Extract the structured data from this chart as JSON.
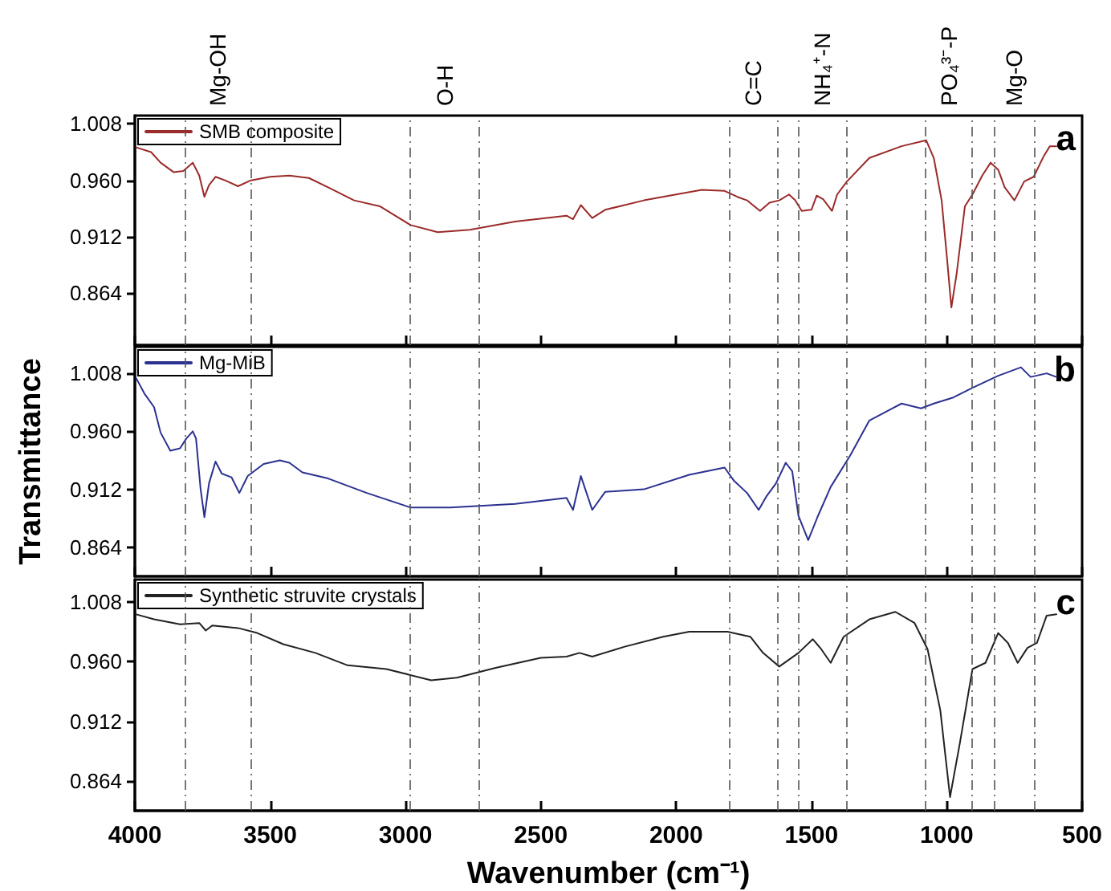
{
  "chart_data": [
    {
      "type": "line",
      "annotations": [
        "a"
      ],
      "legend": "top left",
      "tick_labels": "y",
      "xlim": [
        4000,
        500
      ],
      "xticks": [
        4000,
        3500,
        3000,
        2500,
        2000,
        1500,
        1000,
        500
      ],
      "ylim": [
        0.82,
        1.015
      ],
      "yticks": [
        {
          "value": 0.864,
          "label": "0.864"
        },
        {
          "value": 0.912,
          "label": "0.912"
        },
        {
          "value": 0.96,
          "label": "0.960"
        },
        {
          "value": 1.008,
          "label": "1.008"
        }
      ],
      "ref_lines": [
        {
          "axis": "x",
          "value": 3817,
          "line_style": "dashed",
          "label": "Mg-OH"
        },
        {
          "axis": "x",
          "value": 3571,
          "line_style": "dashed"
        },
        {
          "axis": "x",
          "value": 2984,
          "line_style": "dashed",
          "label": "O-H"
        },
        {
          "axis": "x",
          "value": 2728,
          "line_style": "dashed"
        },
        {
          "axis": "x",
          "value": 1805,
          "line_style": "dashed",
          "label": "C=C"
        },
        {
          "axis": "x",
          "value": 1627,
          "line_style": "dashed"
        },
        {
          "axis": "x",
          "value": 1551,
          "line_style": "dashed",
          "label": "NH₄⁺-N"
        },
        {
          "axis": "x",
          "value": 1371,
          "line_style": "dashed"
        },
        {
          "axis": "x",
          "value": 1079,
          "line_style": "dashed",
          "label": "PO₄³⁻-P"
        },
        {
          "axis": "x",
          "value": 906,
          "line_style": "dashed"
        },
        {
          "axis": "x",
          "value": 825,
          "line_style": "dashed",
          "label": "Mg-O"
        },
        {
          "axis": "x",
          "value": 678,
          "line_style": "dashed"
        }
      ],
      "series": [
        {
          "name": "SMB composite",
          "color": "#9b2a2a",
          "x": [
            3995,
            3940,
            3905,
            3857,
            3821,
            3786,
            3762,
            3743,
            3726,
            3702,
            3667,
            3619,
            3571,
            3500,
            3429,
            3357,
            3286,
            3190,
            3095,
            2981,
            2881,
            2762,
            2595,
            2405,
            2381,
            2352,
            2310,
            2262,
            2119,
            2000,
            1905,
            1821,
            1774,
            1738,
            1690,
            1655,
            1619,
            1583,
            1560,
            1536,
            1500,
            1481,
            1457,
            1424,
            1405,
            1369,
            1286,
            1167,
            1076,
            1048,
            1019,
            1000,
            983,
            964,
            933,
            905,
            869,
            838,
            810,
            786,
            750,
            714,
            679,
            643,
            619,
            595
          ],
          "values": [
            0.988,
            0.984,
            0.975,
            0.967,
            0.968,
            0.975,
            0.964,
            0.946,
            0.956,
            0.963,
            0.96,
            0.955,
            0.96,
            0.963,
            0.964,
            0.962,
            0.954,
            0.943,
            0.938,
            0.922,
            0.916,
            0.918,
            0.925,
            0.93,
            0.927,
            0.939,
            0.928,
            0.935,
            0.943,
            0.948,
            0.952,
            0.951,
            0.946,
            0.943,
            0.934,
            0.941,
            0.943,
            0.948,
            0.943,
            0.934,
            0.935,
            0.947,
            0.944,
            0.934,
            0.948,
            0.959,
            0.979,
            0.989,
            0.994,
            0.979,
            0.943,
            0.896,
            0.852,
            0.88,
            0.938,
            0.948,
            0.964,
            0.975,
            0.969,
            0.954,
            0.943,
            0.959,
            0.963,
            0.98,
            0.989,
            0.989
          ]
        }
      ]
    },
    {
      "type": "line",
      "annotations": [
        "b"
      ],
      "legend": "top left",
      "tick_labels": "y",
      "ylabel": "Transmittance",
      "xlim": [
        4000,
        500
      ],
      "xticks": [
        4000,
        3500,
        3000,
        2500,
        2000,
        1500,
        1000,
        500
      ],
      "ylim": [
        0.84,
        1.03
      ],
      "yticks": [
        {
          "value": 0.864,
          "label": "0.864"
        },
        {
          "value": 0.912,
          "label": "0.912"
        },
        {
          "value": 0.96,
          "label": "0.960"
        },
        {
          "value": 1.008,
          "label": "1.008"
        }
      ],
      "ref_lines": [
        {
          "axis": "x",
          "value": 3817,
          "line_style": "dashed"
        },
        {
          "axis": "x",
          "value": 3571,
          "line_style": "dashed"
        },
        {
          "axis": "x",
          "value": 2984,
          "line_style": "dashed"
        },
        {
          "axis": "x",
          "value": 2728,
          "line_style": "dashed"
        },
        {
          "axis": "x",
          "value": 1805,
          "line_style": "dashed"
        },
        {
          "axis": "x",
          "value": 1627,
          "line_style": "dashed"
        },
        {
          "axis": "x",
          "value": 1551,
          "line_style": "dashed"
        },
        {
          "axis": "x",
          "value": 1371,
          "line_style": "dashed"
        },
        {
          "axis": "x",
          "value": 1079,
          "line_style": "dashed"
        },
        {
          "axis": "x",
          "value": 906,
          "line_style": "dashed"
        },
        {
          "axis": "x",
          "value": 825,
          "line_style": "dashed"
        },
        {
          "axis": "x",
          "value": 678,
          "line_style": "dashed"
        }
      ],
      "series": [
        {
          "name": "Mg-MiB",
          "color": "#2b3190",
          "x": [
            3995,
            3964,
            3929,
            3905,
            3869,
            3833,
            3810,
            3786,
            3774,
            3757,
            3743,
            3726,
            3702,
            3679,
            3643,
            3614,
            3583,
            3524,
            3464,
            3429,
            3381,
            3286,
            3143,
            2981,
            2833,
            2595,
            2405,
            2381,
            2352,
            2310,
            2262,
            2119,
            1952,
            1821,
            1786,
            1738,
            1695,
            1667,
            1631,
            1595,
            1571,
            1548,
            1512,
            1476,
            1429,
            1357,
            1286,
            1167,
            1095,
            1048,
            976,
            905,
            810,
            726,
            690,
            631,
            595
          ],
          "values": [
            1.004,
            0.991,
            0.98,
            0.959,
            0.944,
            0.946,
            0.954,
            0.96,
            0.954,
            0.912,
            0.889,
            0.917,
            0.935,
            0.925,
            0.922,
            0.909,
            0.923,
            0.933,
            0.936,
            0.934,
            0.926,
            0.921,
            0.909,
            0.897,
            0.897,
            0.9,
            0.905,
            0.895,
            0.923,
            0.895,
            0.91,
            0.912,
            0.924,
            0.93,
            0.919,
            0.909,
            0.895,
            0.906,
            0.917,
            0.934,
            0.927,
            0.89,
            0.87,
            0.89,
            0.914,
            0.94,
            0.969,
            0.983,
            0.979,
            0.983,
            0.988,
            0.996,
            1.006,
            1.013,
            1.005,
            1.008,
            1.005
          ]
        }
      ]
    },
    {
      "type": "line",
      "annotations": [
        "c"
      ],
      "legend": "top left",
      "xlabel": "Wavenumber (cm⁻¹)",
      "xlim": [
        4000,
        500
      ],
      "xticks": [
        4000,
        3500,
        3000,
        2500,
        2000,
        1500,
        1000,
        500
      ],
      "ylim": [
        0.84,
        1.026
      ],
      "yticks": [
        {
          "value": 0.864,
          "label": "0.864"
        },
        {
          "value": 0.912,
          "label": "0.912"
        },
        {
          "value": 0.96,
          "label": "0.960"
        },
        {
          "value": 1.008,
          "label": "1.008"
        }
      ],
      "ref_lines": [
        {
          "axis": "x",
          "value": 3817,
          "line_style": "dashed"
        },
        {
          "axis": "x",
          "value": 3571,
          "line_style": "dashed"
        },
        {
          "axis": "x",
          "value": 2984,
          "line_style": "dashed"
        },
        {
          "axis": "x",
          "value": 2728,
          "line_style": "dashed"
        },
        {
          "axis": "x",
          "value": 1805,
          "line_style": "dashed"
        },
        {
          "axis": "x",
          "value": 1627,
          "line_style": "dashed"
        },
        {
          "axis": "x",
          "value": 1551,
          "line_style": "dashed"
        },
        {
          "axis": "x",
          "value": 1371,
          "line_style": "dashed"
        },
        {
          "axis": "x",
          "value": 1079,
          "line_style": "dashed"
        },
        {
          "axis": "x",
          "value": 906,
          "line_style": "dashed"
        },
        {
          "axis": "x",
          "value": 825,
          "line_style": "dashed"
        },
        {
          "axis": "x",
          "value": 678,
          "line_style": "dashed"
        }
      ],
      "series": [
        {
          "name": "Synthetic struvite crystals",
          "color": "#222222",
          "x": [
            3995,
            3929,
            3833,
            3762,
            3738,
            3714,
            3619,
            3548,
            3452,
            3333,
            3214,
            3071,
            2905,
            2810,
            2667,
            2500,
            2405,
            2357,
            2310,
            2190,
            2048,
            1952,
            1810,
            1726,
            1679,
            1619,
            1548,
            1495,
            1464,
            1429,
            1381,
            1286,
            1190,
            1119,
            1071,
            1024,
            988,
            952,
            905,
            857,
            810,
            774,
            738,
            702,
            667,
            631,
            595
          ],
          "values": [
            0.998,
            0.994,
            0.99,
            0.991,
            0.985,
            0.989,
            0.987,
            0.983,
            0.974,
            0.967,
            0.957,
            0.954,
            0.945,
            0.947,
            0.955,
            0.963,
            0.964,
            0.967,
            0.964,
            0.972,
            0.98,
            0.984,
            0.984,
            0.98,
            0.967,
            0.956,
            0.967,
            0.978,
            0.97,
            0.959,
            0.98,
            0.994,
            1.0,
            0.991,
            0.97,
            0.921,
            0.851,
            0.894,
            0.954,
            0.959,
            0.983,
            0.975,
            0.959,
            0.971,
            0.975,
            0.997,
            0.998
          ]
        }
      ]
    }
  ]
}
